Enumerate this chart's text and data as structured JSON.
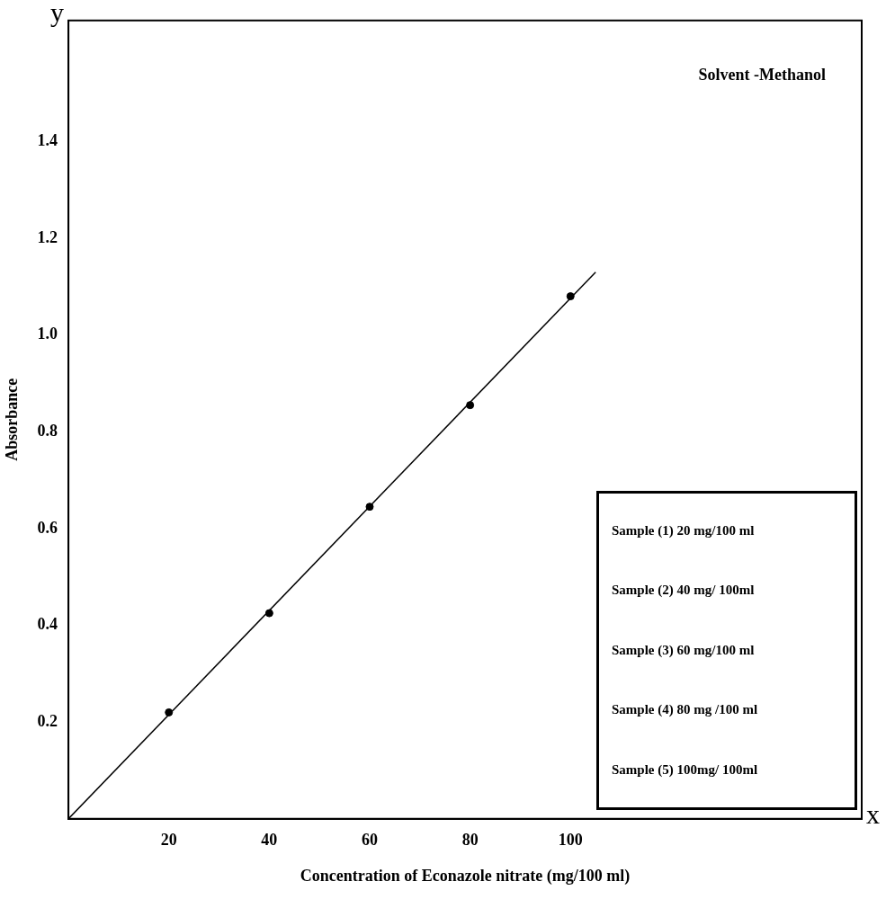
{
  "chart_data": {
    "type": "scatter",
    "xlabel": "Concentration of Econazole nitrate (mg/100 ml)",
    "ylabel": "Absorbance",
    "xlim": [
      0,
      158
    ],
    "ylim": [
      0,
      1.65
    ],
    "xticks": [
      20,
      40,
      60,
      80,
      100
    ],
    "yticks": [
      0.2,
      0.4,
      0.6,
      0.8,
      {
        "value": 1,
        "label": "1.0"
      },
      1.2,
      1.4
    ],
    "grid": false,
    "legend": false,
    "marker": "circle",
    "series": [
      {
        "color": "#000000",
        "x": [
          20,
          40,
          60,
          80,
          100
        ],
        "values": [
          0.22,
          0.425,
          0.645,
          0.855,
          1.08
        ]
      },
      {
        "type": "line",
        "color": "#000000",
        "marker": "none",
        "x": [
          0,
          105
        ],
        "values": [
          0,
          1.13
        ]
      }
    ],
    "annotations": [
      "Solvent -Methanol",
      "Sample (1) 20 mg/100 ml",
      "Sample (2) 40 mg/ 100ml",
      "Sample (3) 60 mg/100 ml",
      "Sample (4) 80 mg /100 ml",
      "Sample (5) 100mg/ 100ml",
      "y",
      "x"
    ]
  }
}
